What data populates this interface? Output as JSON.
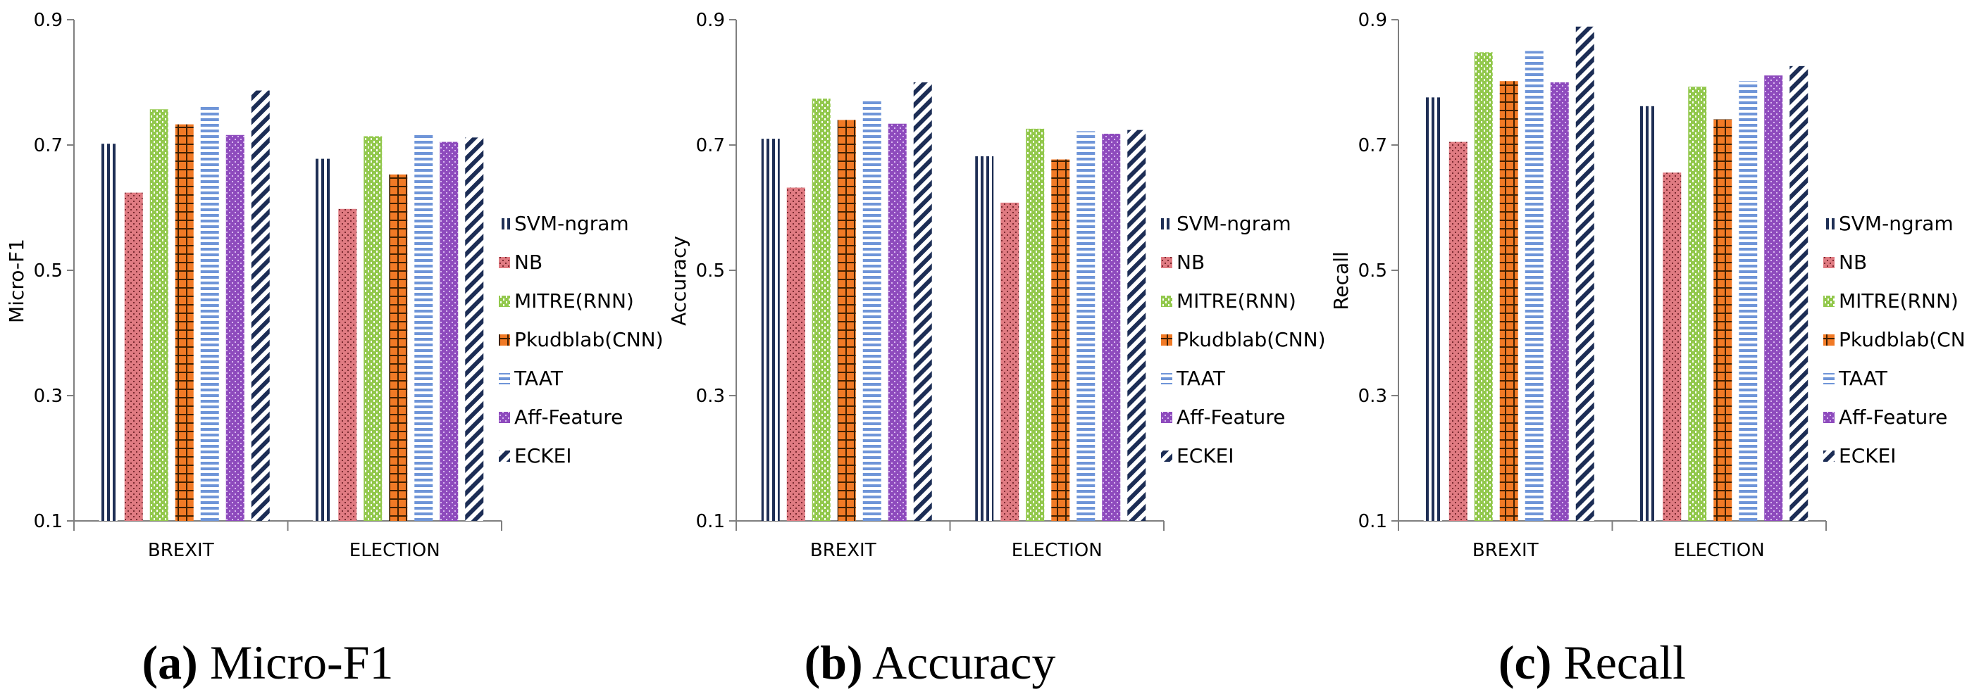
{
  "chart_data": [
    {
      "type": "bar",
      "ylabel": "Micro-F1",
      "xlabel": "",
      "ylim": [
        0.1,
        0.9
      ],
      "yticks": [
        "0.1",
        "0.3",
        "0.5",
        "0.7",
        "0.9"
      ],
      "categories": [
        "BREXIT",
        "ELECTION"
      ],
      "series": [
        {
          "name": "SVM-ngram",
          "values": [
            0.702,
            0.678
          ]
        },
        {
          "name": "NB",
          "values": [
            0.624,
            0.598
          ]
        },
        {
          "name": "MITRE(RNN)",
          "values": [
            0.757,
            0.714
          ]
        },
        {
          "name": "Pkudblab(CNN)",
          "values": [
            0.733,
            0.653
          ]
        },
        {
          "name": "TAAT",
          "values": [
            0.763,
            0.716
          ]
        },
        {
          "name": "Aff-Feature",
          "values": [
            0.716,
            0.705
          ]
        },
        {
          "name": "ECKEI",
          "values": [
            0.787,
            0.712
          ]
        }
      ],
      "legend": "right",
      "caption": {
        "label": "(a)",
        "text": "Micro-F1"
      }
    },
    {
      "type": "bar",
      "ylabel": "Accuracy",
      "xlabel": "",
      "ylim": [
        0.1,
        0.9
      ],
      "yticks": [
        "0.1",
        "0.3",
        "0.5",
        "0.7",
        "0.9"
      ],
      "categories": [
        "BREXIT",
        "ELECTION"
      ],
      "series": [
        {
          "name": "SVM-ngram",
          "values": [
            0.71,
            0.682
          ]
        },
        {
          "name": "NB",
          "values": [
            0.632,
            0.608
          ]
        },
        {
          "name": "MITRE(RNN)",
          "values": [
            0.774,
            0.726
          ]
        },
        {
          "name": "Pkudblab(CNN)",
          "values": [
            0.74,
            0.677
          ]
        },
        {
          "name": "TAAT",
          "values": [
            0.771,
            0.722
          ]
        },
        {
          "name": "Aff-Feature",
          "values": [
            0.734,
            0.718
          ]
        },
        {
          "name": "ECKEI",
          "values": [
            0.8,
            0.724
          ]
        }
      ],
      "legend": "right",
      "caption": {
        "label": "(b)",
        "text": "Accuracy"
      }
    },
    {
      "type": "bar",
      "ylabel": "Recall",
      "xlabel": "",
      "ylim": [
        0.1,
        0.9
      ],
      "yticks": [
        "0.1",
        "0.3",
        "0.5",
        "0.7",
        "0.9"
      ],
      "categories": [
        "BREXIT",
        "ELECTION"
      ],
      "series": [
        {
          "name": "SVM-ngram",
          "values": [
            0.776,
            0.762
          ]
        },
        {
          "name": "NB",
          "values": [
            0.705,
            0.656
          ]
        },
        {
          "name": "MITRE(RNN)",
          "values": [
            0.848,
            0.793
          ]
        },
        {
          "name": "Pkudblab(CNN)",
          "values": [
            0.802,
            0.741
          ]
        },
        {
          "name": "TAAT",
          "values": [
            0.85,
            0.802
          ]
        },
        {
          "name": "Aff-Feature",
          "values": [
            0.8,
            0.811
          ]
        },
        {
          "name": "ECKEI",
          "values": [
            0.889,
            0.826
          ]
        }
      ],
      "legend": "right",
      "caption": {
        "label": "(c)",
        "text": "Recall"
      }
    }
  ],
  "styles": {
    "series_colors": [
      "#1f2f55",
      "#e07b82",
      "#92c84c",
      "#f17a26",
      "#6f95d8",
      "#8e4bbd",
      "#1c2d55"
    ],
    "axis_color": "#7f7f7f"
  }
}
